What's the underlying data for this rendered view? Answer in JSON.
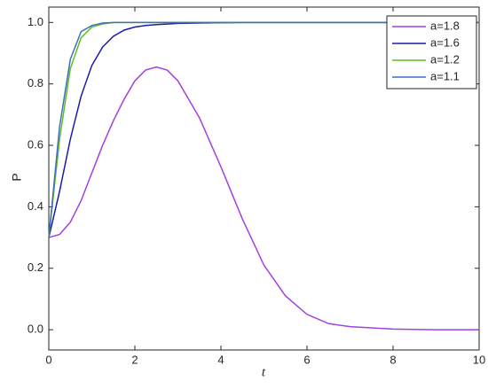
{
  "chart_data": {
    "type": "line",
    "xlabel": "t",
    "ylabel": "P",
    "x": [
      0,
      0.25,
      0.5,
      0.75,
      1,
      1.25,
      1.5,
      1.75,
      2,
      2.25,
      2.5,
      2.75,
      3,
      3.5,
      4,
      4.5,
      5,
      5.5,
      6,
      6.5,
      7,
      8,
      9,
      10
    ],
    "series": [
      {
        "name": "a=1.8",
        "color": "#a43fe0",
        "values": [
          0.3,
          0.31,
          0.35,
          0.42,
          0.51,
          0.6,
          0.68,
          0.75,
          0.81,
          0.845,
          0.855,
          0.845,
          0.81,
          0.69,
          0.53,
          0.36,
          0.21,
          0.11,
          0.05,
          0.02,
          0.01,
          0.002,
          0,
          0
        ]
      },
      {
        "name": "a=1.6",
        "color": "#1c1ca8",
        "values": [
          0.3,
          0.45,
          0.62,
          0.76,
          0.86,
          0.92,
          0.955,
          0.975,
          0.985,
          0.99,
          0.993,
          0.995,
          0.997,
          0.998,
          0.999,
          1,
          1,
          1,
          1,
          1,
          1,
          1,
          1,
          1
        ]
      },
      {
        "name": "a=1.2",
        "color": "#5cbf25",
        "values": [
          0.3,
          0.62,
          0.85,
          0.95,
          0.985,
          0.995,
          1,
          1,
          1,
          1,
          1,
          1,
          1,
          1,
          1,
          1,
          1,
          1,
          1,
          1,
          1,
          1,
          1,
          1
        ]
      },
      {
        "name": "a=1.1",
        "color": "#3f6fbf",
        "values": [
          0.3,
          0.66,
          0.88,
          0.97,
          0.99,
          0.998,
          1,
          1,
          1,
          1,
          1,
          1,
          1,
          1,
          1,
          1,
          1,
          1,
          1,
          1,
          1,
          1,
          1,
          1
        ]
      }
    ],
    "xlim": [
      0,
      10
    ],
    "xticks": [
      0,
      2,
      4,
      6,
      8,
      10
    ],
    "ylim": [
      -0.066,
      1.05
    ],
    "yticks": [
      {
        "value": 0,
        "label": "0.0"
      },
      {
        "value": 0.2,
        "label": "0.2"
      },
      {
        "value": 0.4,
        "label": "0.4"
      },
      {
        "value": 0.6,
        "label": "0.6"
      },
      {
        "value": 0.8,
        "label": "0.8"
      },
      {
        "value": 1,
        "label": "1.0"
      }
    ],
    "legend": "upper right",
    "grid": false
  }
}
